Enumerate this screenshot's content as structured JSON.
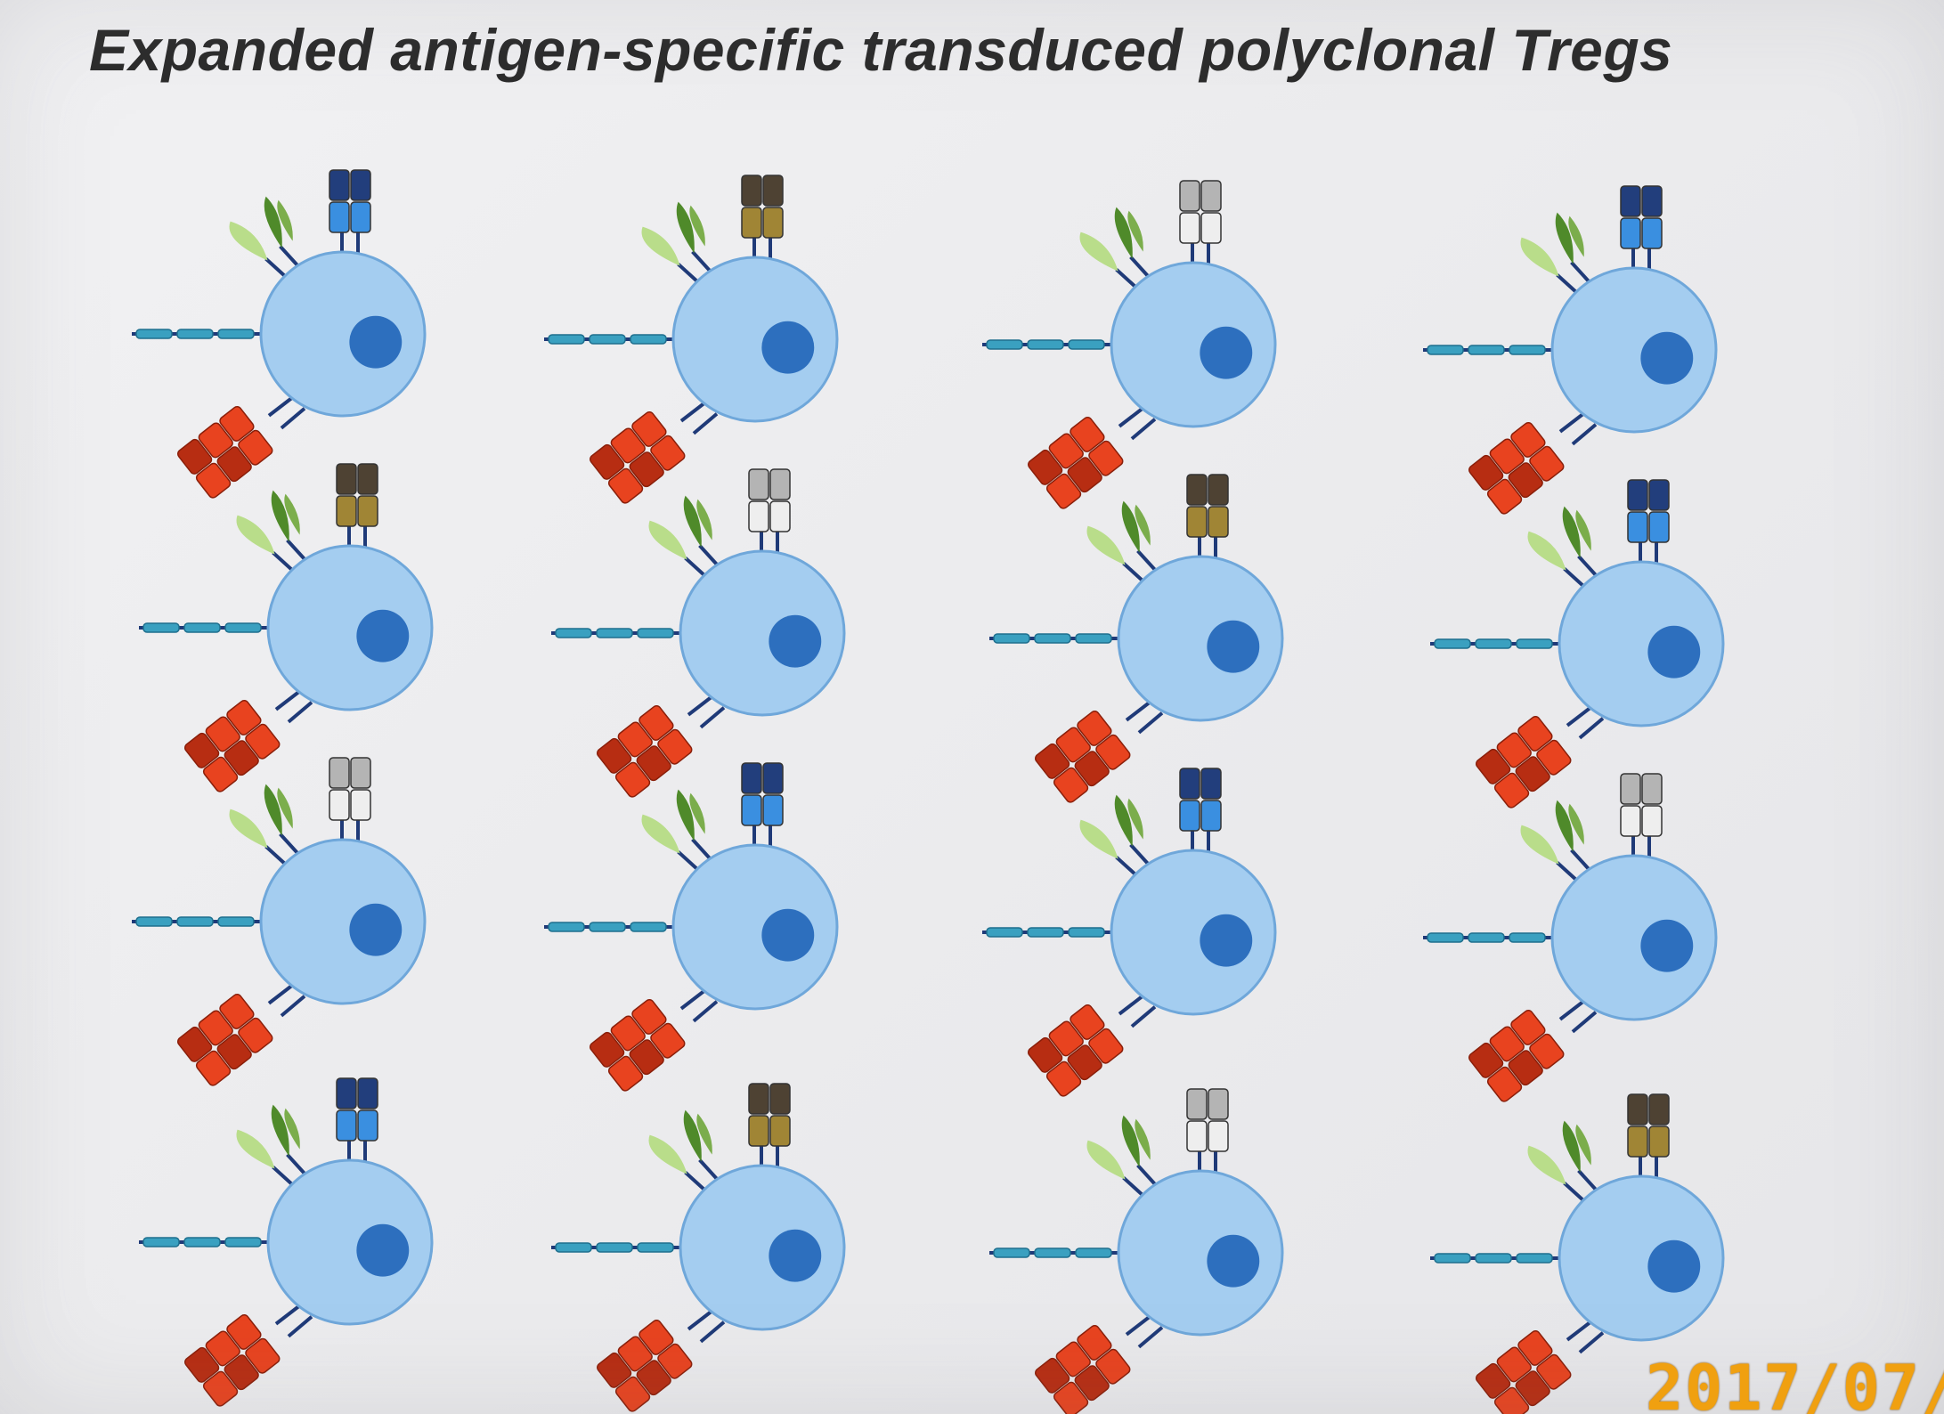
{
  "slide": {
    "title": "Expanded antigen-specific transduced polyclonal Tregs"
  },
  "photo": {
    "datestamp": "2017/07/"
  },
  "cells": {
    "rows": 4,
    "columns": 4,
    "tcr_colors": [
      [
        "blue",
        "brown",
        "gray",
        "blue"
      ],
      [
        "brown",
        "gray",
        "brown",
        "blue"
      ],
      [
        "gray",
        "blue",
        "blue",
        "gray"
      ],
      [
        "blue",
        "brown",
        "gray",
        "brown"
      ]
    ]
  },
  "colors": {
    "cell_body": "#a4cdf0",
    "cell_border": "#6fa7da",
    "nucleus": "#2d6fbe",
    "receptor_red": "#e8431f",
    "receptor_red_dark": "#b72d12",
    "leaf_dark": "#4f8a2a",
    "leaf_light": "#b9dd8a",
    "rod": "#3aa0c0",
    "stem": "#1f3a78",
    "tcr": {
      "blue": {
        "top": "#223e7c",
        "bottom": "#3a8fe0"
      },
      "brown": {
        "top": "#4e4233",
        "bottom": "#a08535"
      },
      "gray": {
        "top": "#b4b4b4",
        "bottom": "#eeeeee"
      }
    }
  }
}
